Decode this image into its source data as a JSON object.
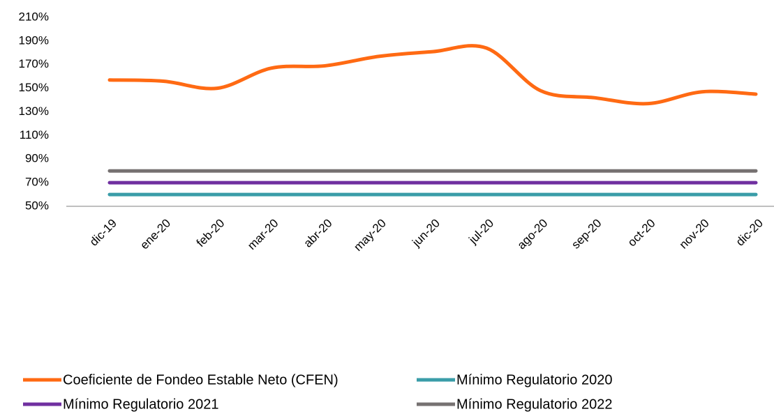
{
  "chart_data": {
    "type": "line",
    "categories": [
      "dic-19",
      "ene-20",
      "feb-20",
      "mar-20",
      "abr-20",
      "may-20",
      "jun-20",
      "jul-20",
      "ago-20",
      "sep-20",
      "oct-20",
      "nov-20",
      "dic-20"
    ],
    "series": [
      {
        "name": "Coeficiente de Fondeo Estable Neto (CFEN)",
        "color": "#ff6a13",
        "values": [
          157,
          156,
          150,
          167,
          169,
          177,
          181,
          184,
          148,
          142,
          137,
          147,
          145
        ]
      },
      {
        "name": "Mínimo Regulatorio 2020",
        "color": "#3a9da8",
        "values": [
          60,
          60,
          60,
          60,
          60,
          60,
          60,
          60,
          60,
          60,
          60,
          60,
          60
        ]
      },
      {
        "name": "Mínimo Regulatorio 2021",
        "color": "#7030a0",
        "values": [
          70,
          70,
          70,
          70,
          70,
          70,
          70,
          70,
          70,
          70,
          70,
          70,
          70
        ]
      },
      {
        "name": "Mínimo Regulatorio 2022",
        "color": "#767171",
        "values": [
          80,
          80,
          80,
          80,
          80,
          80,
          80,
          80,
          80,
          80,
          80,
          80,
          80
        ]
      }
    ],
    "ylim": [
      50,
      210
    ],
    "yticks": [
      {
        "value": 50,
        "label": "50%"
      },
      {
        "value": 70,
        "label": "70%"
      },
      {
        "value": 90,
        "label": "90%"
      },
      {
        "value": 110,
        "label": "110%"
      },
      {
        "value": 130,
        "label": "130%"
      },
      {
        "value": 150,
        "label": "150%"
      },
      {
        "value": 170,
        "label": "170%"
      },
      {
        "value": 190,
        "label": "190%"
      },
      {
        "value": 210,
        "label": "210%"
      }
    ],
    "grid": false,
    "legend": "bottom"
  }
}
